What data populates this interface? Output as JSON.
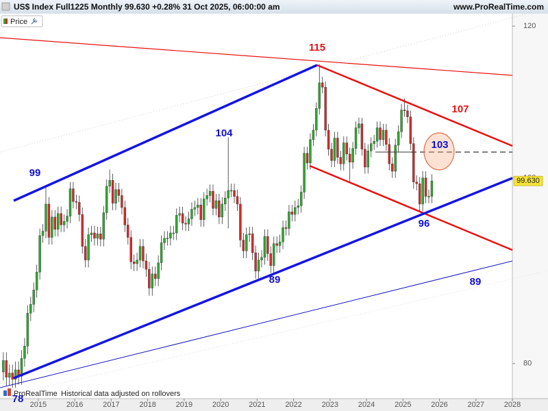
{
  "chart_data": {
    "type": "candlestick",
    "title": "US$ Index Full1225 Monthly 99.630 +0.28% 31 Oct 2025, 06:00:00 am",
    "source": "www.ProRealTime.com",
    "legend": "Price",
    "brand": "ProRealTime",
    "note": "Historical data adjusted on rollovers",
    "log_scale": true,
    "grid": false,
    "up_color": "#2ea82e",
    "down_color": "#d42a2a",
    "last_price": {
      "value": 99.63,
      "label": "99.630"
    },
    "annotations": [
      "115",
      "107",
      "103",
      "104",
      "99",
      "96",
      "89",
      "89",
      "78"
    ],
    "xlim": [
      2013.95,
      2028
    ],
    "xticks": [
      2015,
      2016,
      2017,
      2018,
      2019,
      2020,
      2021,
      2022,
      2023,
      2024,
      2025,
      2026,
      2027,
      2028
    ],
    "ylim": [
      76.7,
      121.8
    ],
    "yticks": [
      80,
      100,
      120
    ],
    "x": [
      "2014-01",
      "2014-02",
      "2014-03",
      "2014-04",
      "2014-05",
      "2014-06",
      "2014-07",
      "2014-08",
      "2014-09",
      "2014-10",
      "2014-11",
      "2014-12",
      "2015-01",
      "2015-02",
      "2015-03",
      "2015-04",
      "2015-05",
      "2015-06",
      "2015-07",
      "2015-08",
      "2015-09",
      "2015-10",
      "2015-11",
      "2015-12",
      "2016-01",
      "2016-02",
      "2016-03",
      "2016-04",
      "2016-05",
      "2016-06",
      "2016-07",
      "2016-08",
      "2016-09",
      "2016-10",
      "2016-11",
      "2016-12",
      "2017-01",
      "2017-02",
      "2017-03",
      "2017-04",
      "2017-05",
      "2017-06",
      "2017-07",
      "2017-08",
      "2017-09",
      "2017-10",
      "2017-11",
      "2017-12",
      "2018-01",
      "2018-02",
      "2018-03",
      "2018-04",
      "2018-05",
      "2018-06",
      "2018-07",
      "2018-08",
      "2018-09",
      "2018-10",
      "2018-11",
      "2018-12",
      "2019-01",
      "2019-02",
      "2019-03",
      "2019-04",
      "2019-05",
      "2019-06",
      "2019-07",
      "2019-08",
      "2019-09",
      "2019-10",
      "2019-11",
      "2019-12",
      "2020-01",
      "2020-02",
      "2020-03",
      "2020-04",
      "2020-05",
      "2020-06",
      "2020-07",
      "2020-08",
      "2020-09",
      "2020-10",
      "2020-11",
      "2020-12",
      "2021-01",
      "2021-02",
      "2021-03",
      "2021-04",
      "2021-05",
      "2021-06",
      "2021-07",
      "2021-08",
      "2021-09",
      "2021-10",
      "2021-11",
      "2021-12",
      "2022-01",
      "2022-02",
      "2022-03",
      "2022-04",
      "2022-05",
      "2022-06",
      "2022-07",
      "2022-08",
      "2022-09",
      "2022-10",
      "2022-11",
      "2022-12",
      "2023-01",
      "2023-02",
      "2023-03",
      "2023-04",
      "2023-05",
      "2023-06",
      "2023-07",
      "2023-08",
      "2023-09",
      "2023-10",
      "2023-11",
      "2023-12",
      "2024-01",
      "2024-02",
      "2024-03",
      "2024-04",
      "2024-05",
      "2024-06",
      "2024-07",
      "2024-08",
      "2024-09",
      "2024-10",
      "2024-11",
      "2024-12",
      "2025-01",
      "2025-02",
      "2025-03",
      "2025-04",
      "2025-05",
      "2025-06",
      "2025-07",
      "2025-08",
      "2025-09",
      "2025-10"
    ],
    "open": [
      79.2,
      80.3,
      78.7,
      79.1,
      78.5,
      79.4,
      78.8,
      80.5,
      81.7,
      85.0,
      85.9,
      87.4,
      89.3,
      93.3,
      93.8,
      96.9,
      93.1,
      95.4,
      94.0,
      95.8,
      94.5,
      94.9,
      95.5,
      98.7,
      97.2,
      97.1,
      95.7,
      92.1,
      90.6,
      93.4,
      93.6,
      93.0,
      93.5,
      92.9,
      95.9,
      99.0,
      99.7,
      97.0,
      98.6,
      97.9,
      96.5,
      94.5,
      93.1,
      90.4,
      90.2,
      90.6,
      92.1,
      90.5,
      89.6,
      87.6,
      89.1,
      88.6,
      90.3,
      92.5,
      93.0,
      93.0,
      93.6,
      93.6,
      95.6,
      95.8,
      94.7,
      94.6,
      95.2,
      96.3,
      96.5,
      96.8,
      95.1,
      97.5,
      97.9,
      98.4,
      96.4,
      97.3,
      95.4,
      96.9,
      97.6,
      98.5,
      98.5,
      97.8,
      96.9,
      92.8,
      91.6,
      93.4,
      93.5,
      91.4,
      89.4,
      90.6,
      90.9,
      93.2,
      91.3,
      90.0,
      92.4,
      92.2,
      92.6,
      94.2,
      94.1,
      96.0,
      95.7,
      96.5,
      96.7,
      98.3,
      103.0,
      101.8,
      104.7,
      105.9,
      108.7,
      112.1,
      111.5,
      105.9,
      103.5,
      102.1,
      104.9,
      102.5,
      101.7,
      104.3,
      102.9,
      101.9,
      103.6,
      106.2,
      106.7,
      103.5,
      101.3,
      103.3,
      104.2,
      104.5,
      106.2,
      104.7,
      105.9,
      104.1,
      101.7,
      100.8,
      104.0,
      105.7,
      108.5,
      108.4,
      107.6,
      104.2,
      99.5,
      99.3,
      96.9,
      100.0,
      97.8,
      97.8
    ],
    "high": [
      81.1,
      81.1,
      79.9,
      79.9,
      80.2,
      80.2,
      81.3,
      82.5,
      85.8,
      86.7,
      88.2,
      90.1,
      94.1,
      94.6,
      98.9,
      97.7,
      96.2,
      96.2,
      96.6,
      96.6,
      95.7,
      96.3,
      99.5,
      99.5,
      98.0,
      97.9,
      96.5,
      92.9,
      94.2,
      94.4,
      94.4,
      94.3,
      94.3,
      96.7,
      99.8,
      101.0,
      100.5,
      99.4,
      99.4,
      98.7,
      97.3,
      95.3,
      93.9,
      91.2,
      91.4,
      92.9,
      92.9,
      91.3,
      90.4,
      89.9,
      89.9,
      91.1,
      93.3,
      93.8,
      93.8,
      94.4,
      94.4,
      96.4,
      96.6,
      96.6,
      95.5,
      96.0,
      97.1,
      97.3,
      97.6,
      97.6,
      98.3,
      98.7,
      99.2,
      99.2,
      98.1,
      98.1,
      97.7,
      98.4,
      105.0,
      99.3,
      99.3,
      98.6,
      97.7,
      93.6,
      94.2,
      94.3,
      94.3,
      92.2,
      91.4,
      91.7,
      94.0,
      94.0,
      92.1,
      93.2,
      93.2,
      93.4,
      95.0,
      95.0,
      96.8,
      96.8,
      97.3,
      97.5,
      99.1,
      103.8,
      103.8,
      105.5,
      106.7,
      109.5,
      114.6,
      112.9,
      112.3,
      106.7,
      104.3,
      105.7,
      105.7,
      103.3,
      105.1,
      105.1,
      103.7,
      104.4,
      107.0,
      107.5,
      107.5,
      104.3,
      104.1,
      105.0,
      105.3,
      107.0,
      107.0,
      106.7,
      106.7,
      104.9,
      102.5,
      104.8,
      106.5,
      109.3,
      110.0,
      109.2,
      108.4,
      105.0,
      100.3,
      100.1,
      100.8,
      100.8,
      98.6,
      100.43
    ],
    "low": [
      78.4,
      77.9,
      77.9,
      77.7,
      77.7,
      78.0,
      78.0,
      79.7,
      80.9,
      84.2,
      85.1,
      86.6,
      88.5,
      92.5,
      93.0,
      92.3,
      92.3,
      93.2,
      93.2,
      93.7,
      93.7,
      94.1,
      94.7,
      96.4,
      96.3,
      94.9,
      91.3,
      89.8,
      89.8,
      92.6,
      92.2,
      92.2,
      92.1,
      92.1,
      95.1,
      98.2,
      96.2,
      96.2,
      97.1,
      95.7,
      93.7,
      92.3,
      89.6,
      89.4,
      89.4,
      89.8,
      89.7,
      88.8,
      86.8,
      86.8,
      87.8,
      87.8,
      89.5,
      91.7,
      92.2,
      92.2,
      92.8,
      92.8,
      94.8,
      93.9,
      93.8,
      93.8,
      94.4,
      95.5,
      95.7,
      94.3,
      94.3,
      96.7,
      97.1,
      95.6,
      95.6,
      94.6,
      94.6,
      96.1,
      94.1,
      97.7,
      97.0,
      96.1,
      92.0,
      90.8,
      90.8,
      92.6,
      90.6,
      88.6,
      88.6,
      89.8,
      90.1,
      90.5,
      89.2,
      89.2,
      91.4,
      91.4,
      91.8,
      93.3,
      93.3,
      94.9,
      94.9,
      95.7,
      95.9,
      97.5,
      101.0,
      101.0,
      103.9,
      105.1,
      107.9,
      110.7,
      105.1,
      102.7,
      101.3,
      101.3,
      101.7,
      100.9,
      100.9,
      102.1,
      99.6,
      101.1,
      102.8,
      105.4,
      102.7,
      100.5,
      100.5,
      102.5,
      103.4,
      103.7,
      103.9,
      103.9,
      103.3,
      100.9,
      100.0,
      100.0,
      103.2,
      104.9,
      107.6,
      106.8,
      103.4,
      98.7,
      98.5,
      96.1,
      96.1,
      97.0,
      97.0,
      97.0
    ],
    "close": [
      80.3,
      78.7,
      79.1,
      78.5,
      79.4,
      78.8,
      80.5,
      81.7,
      85.0,
      85.9,
      87.4,
      89.3,
      93.3,
      93.8,
      96.9,
      93.1,
      95.4,
      94.0,
      95.8,
      94.5,
      94.9,
      95.5,
      98.7,
      97.2,
      97.1,
      95.7,
      92.1,
      90.6,
      93.4,
      93.6,
      93.0,
      93.5,
      92.9,
      95.9,
      99.0,
      99.7,
      97.0,
      98.6,
      97.9,
      96.5,
      94.5,
      93.1,
      90.4,
      90.2,
      90.6,
      92.1,
      90.5,
      89.6,
      87.6,
      89.1,
      88.6,
      90.3,
      92.5,
      93.0,
      93.0,
      93.6,
      93.6,
      95.6,
      95.8,
      94.7,
      94.6,
      95.2,
      96.3,
      96.5,
      96.8,
      95.1,
      97.5,
      97.9,
      98.4,
      96.4,
      97.3,
      95.4,
      96.9,
      97.6,
      98.5,
      98.5,
      97.8,
      96.9,
      92.8,
      91.6,
      93.4,
      93.5,
      91.4,
      89.4,
      90.6,
      90.9,
      93.2,
      91.3,
      90.0,
      92.4,
      92.2,
      92.6,
      94.2,
      94.1,
      96.0,
      95.7,
      96.5,
      96.7,
      98.3,
      103.0,
      101.8,
      104.7,
      105.9,
      108.7,
      112.1,
      111.5,
      105.9,
      103.5,
      102.1,
      104.9,
      102.5,
      101.7,
      104.3,
      102.9,
      101.9,
      103.6,
      106.2,
      106.7,
      103.5,
      101.3,
      103.3,
      104.2,
      104.5,
      106.2,
      104.7,
      105.9,
      104.1,
      101.7,
      100.8,
      104.0,
      105.7,
      108.5,
      108.4,
      107.6,
      104.2,
      99.5,
      99.3,
      96.9,
      100.0,
      97.8,
      97.8,
      99.63
    ]
  }
}
